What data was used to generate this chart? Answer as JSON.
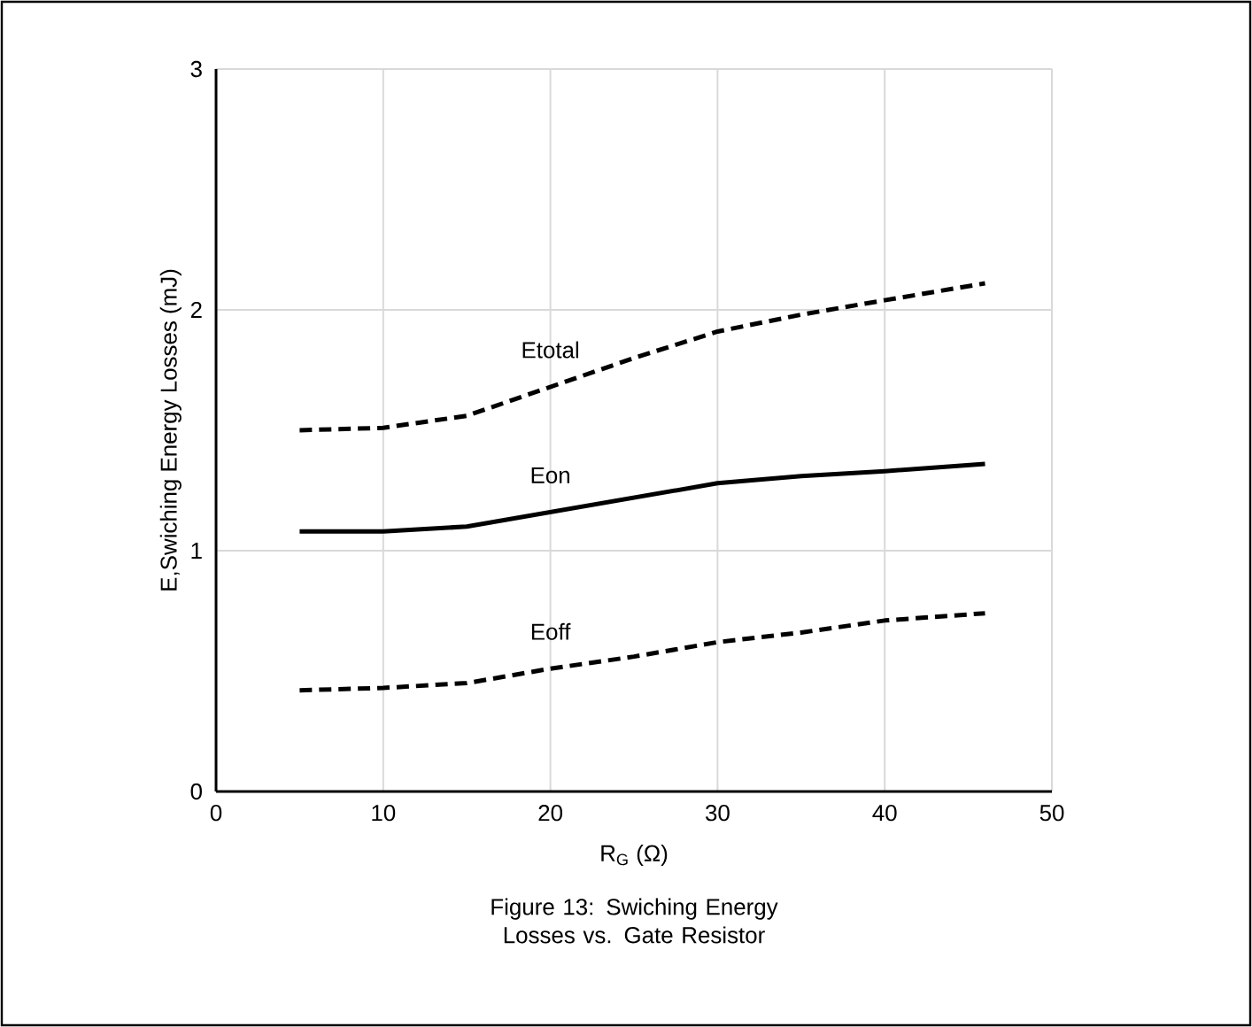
{
  "chart_data": {
    "type": "line",
    "title": "Figure 13: Swiching Energy Losses vs. Gate Resistor",
    "xlabel": "R$_{G}$ (Ω)",
    "ylabel": "E,Swiching Energy Losses (mJ)",
    "x": [
      5,
      10,
      15,
      20,
      25,
      30,
      35,
      40,
      46
    ],
    "series": [
      {
        "name": "Etotal",
        "color": "#000000",
        "line_style": "dashed",
        "values": [
          1.5,
          1.51,
          1.56,
          1.68,
          1.8,
          1.91,
          1.98,
          2.04,
          2.11
        ]
      },
      {
        "name": "Eon",
        "color": "#000000",
        "line_style": "solid",
        "values": [
          1.08,
          1.08,
          1.1,
          1.16,
          1.22,
          1.28,
          1.31,
          1.33,
          1.36
        ]
      },
      {
        "name": "Eoff",
        "color": "#000000",
        "line_style": "dashed",
        "values": [
          0.42,
          0.43,
          0.45,
          0.51,
          0.56,
          0.62,
          0.66,
          0.71,
          0.74
        ]
      }
    ],
    "xlim": [
      0,
      50
    ],
    "ylim": [
      0,
      3
    ],
    "xticks": [
      0,
      10,
      20,
      30,
      40,
      50
    ],
    "yticks": [
      0,
      1,
      2,
      3
    ],
    "grid": true,
    "marker": "none"
  }
}
